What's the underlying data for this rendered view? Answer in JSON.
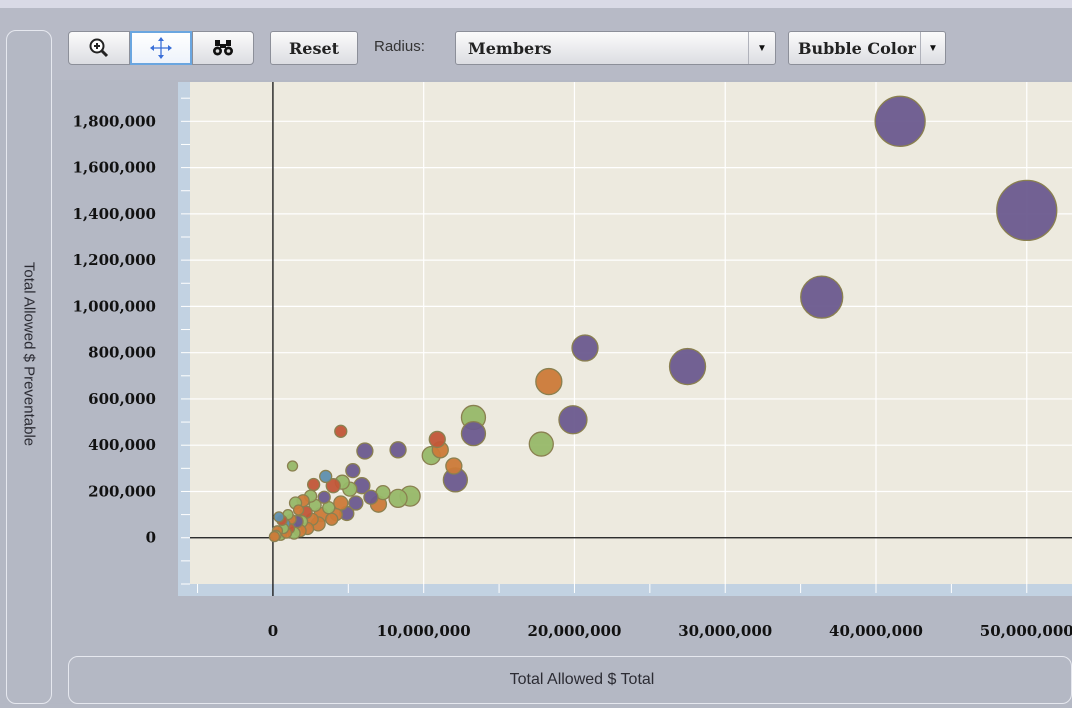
{
  "toolbar": {
    "tools": [
      {
        "name": "zoom-in-icon",
        "glyph": "⊕"
      },
      {
        "name": "pan-icon",
        "glyph": "✛",
        "active": true
      },
      {
        "name": "binoculars-icon",
        "glyph": "⚲"
      }
    ],
    "reset_label": "Reset",
    "radius_label": "Radius:",
    "radius_value": "Members",
    "bubble_color_label": "Bubble Color"
  },
  "chart_data": {
    "type": "scatter",
    "xlabel": "Total Allowed $ Total",
    "ylabel": "Total Allowed $ Preventable",
    "xlim": [
      -5500000,
      53000000
    ],
    "ylim": [
      -200000,
      1970000
    ],
    "x_ticks": [
      0,
      10000000,
      20000000,
      30000000,
      40000000,
      50000000
    ],
    "x_tick_labels": [
      "0",
      "10,000,000",
      "20,000,000",
      "30,000,000",
      "40,000,000",
      "50,000,000"
    ],
    "y_ticks": [
      0,
      200000,
      400000,
      600000,
      800000,
      1000000,
      1200000,
      1400000,
      1600000,
      1800000
    ],
    "y_tick_labels": [
      "0",
      "200,000",
      "400,000",
      "600,000",
      "800,000",
      "1,000,000",
      "1,200,000",
      "1,400,000",
      "1,600,000",
      "1,800,000"
    ],
    "grid": true,
    "colors": {
      "purple": "#6b5a8e",
      "green": "#97b868",
      "orange": "#cc7a38",
      "red": "#c25638",
      "blue": "#5f8fae"
    },
    "points": [
      {
        "x": 41600000,
        "y": 1800000,
        "r": 25,
        "c": "purple"
      },
      {
        "x": 50000000,
        "y": 1415000,
        "r": 30,
        "c": "purple"
      },
      {
        "x": 36400000,
        "y": 1040000,
        "r": 21,
        "c": "purple"
      },
      {
        "x": 27500000,
        "y": 740000,
        "r": 18,
        "c": "purple"
      },
      {
        "x": 20700000,
        "y": 820000,
        "r": 13,
        "c": "purple"
      },
      {
        "x": 19900000,
        "y": 510000,
        "r": 14,
        "c": "purple"
      },
      {
        "x": 18300000,
        "y": 675000,
        "r": 13,
        "c": "orange"
      },
      {
        "x": 17800000,
        "y": 405000,
        "r": 12,
        "c": "green"
      },
      {
        "x": 13300000,
        "y": 520000,
        "r": 12,
        "c": "green"
      },
      {
        "x": 13300000,
        "y": 450000,
        "r": 12,
        "c": "purple"
      },
      {
        "x": 12100000,
        "y": 250000,
        "r": 12,
        "c": "purple"
      },
      {
        "x": 12000000,
        "y": 310000,
        "r": 8,
        "c": "orange"
      },
      {
        "x": 11100000,
        "y": 380000,
        "r": 8,
        "c": "orange"
      },
      {
        "x": 10900000,
        "y": 425000,
        "r": 8,
        "c": "red"
      },
      {
        "x": 10500000,
        "y": 355000,
        "r": 9,
        "c": "green"
      },
      {
        "x": 9100000,
        "y": 180000,
        "r": 10,
        "c": "green"
      },
      {
        "x": 8300000,
        "y": 170000,
        "r": 9,
        "c": "green"
      },
      {
        "x": 8300000,
        "y": 380000,
        "r": 8,
        "c": "purple"
      },
      {
        "x": 7300000,
        "y": 195000,
        "r": 7,
        "c": "green"
      },
      {
        "x": 7000000,
        "y": 145000,
        "r": 8,
        "c": "orange"
      },
      {
        "x": 6500000,
        "y": 175000,
        "r": 7,
        "c": "purple"
      },
      {
        "x": 6100000,
        "y": 375000,
        "r": 8,
        "c": "purple"
      },
      {
        "x": 5900000,
        "y": 225000,
        "r": 8,
        "c": "purple"
      },
      {
        "x": 5500000,
        "y": 150000,
        "r": 7,
        "c": "purple"
      },
      {
        "x": 5300000,
        "y": 290000,
        "r": 7,
        "c": "purple"
      },
      {
        "x": 5100000,
        "y": 210000,
        "r": 7,
        "c": "green"
      },
      {
        "x": 4900000,
        "y": 105000,
        "r": 7,
        "c": "purple"
      },
      {
        "x": 4600000,
        "y": 240000,
        "r": 7,
        "c": "green"
      },
      {
        "x": 4500000,
        "y": 150000,
        "r": 7,
        "c": "orange"
      },
      {
        "x": 4500000,
        "y": 460000,
        "r": 6,
        "c": "red"
      },
      {
        "x": 4200000,
        "y": 100000,
        "r": 6,
        "c": "orange"
      },
      {
        "x": 4000000,
        "y": 225000,
        "r": 7,
        "c": "red"
      },
      {
        "x": 3900000,
        "y": 80000,
        "r": 6,
        "c": "orange"
      },
      {
        "x": 3700000,
        "y": 130000,
        "r": 6,
        "c": "green"
      },
      {
        "x": 3500000,
        "y": 265000,
        "r": 6,
        "c": "blue"
      },
      {
        "x": 3400000,
        "y": 175000,
        "r": 6,
        "c": "purple"
      },
      {
        "x": 3200000,
        "y": 100000,
        "r": 7,
        "c": "orange"
      },
      {
        "x": 3000000,
        "y": 60000,
        "r": 7,
        "c": "orange"
      },
      {
        "x": 2800000,
        "y": 140000,
        "r": 6,
        "c": "green"
      },
      {
        "x": 2700000,
        "y": 230000,
        "r": 6,
        "c": "red"
      },
      {
        "x": 2600000,
        "y": 80000,
        "r": 6,
        "c": "orange"
      },
      {
        "x": 2500000,
        "y": 180000,
        "r": 6,
        "c": "green"
      },
      {
        "x": 2300000,
        "y": 40000,
        "r": 6,
        "c": "orange"
      },
      {
        "x": 2200000,
        "y": 110000,
        "r": 6,
        "c": "red"
      },
      {
        "x": 2000000,
        "y": 160000,
        "r": 6,
        "c": "orange"
      },
      {
        "x": 1900000,
        "y": 70000,
        "r": 6,
        "c": "green"
      },
      {
        "x": 1800000,
        "y": 30000,
        "r": 6,
        "c": "orange"
      },
      {
        "x": 1700000,
        "y": 120000,
        "r": 5,
        "c": "orange"
      },
      {
        "x": 1600000,
        "y": 70000,
        "r": 6,
        "c": "purple"
      },
      {
        "x": 1500000,
        "y": 150000,
        "r": 6,
        "c": "green"
      },
      {
        "x": 1400000,
        "y": 20000,
        "r": 6,
        "c": "green"
      },
      {
        "x": 1300000,
        "y": 310000,
        "r": 5,
        "c": "green"
      },
      {
        "x": 1200000,
        "y": 80000,
        "r": 5,
        "c": "orange"
      },
      {
        "x": 1100000,
        "y": 40000,
        "r": 5,
        "c": "red"
      },
      {
        "x": 1000000,
        "y": 100000,
        "r": 5,
        "c": "green"
      },
      {
        "x": 900000,
        "y": 20000,
        "r": 5,
        "c": "orange"
      },
      {
        "x": 800000,
        "y": 60000,
        "r": 5,
        "c": "blue"
      },
      {
        "x": 700000,
        "y": 40000,
        "r": 5,
        "c": "green"
      },
      {
        "x": 600000,
        "y": 75000,
        "r": 5,
        "c": "red"
      },
      {
        "x": 500000,
        "y": 15000,
        "r": 6,
        "c": "green"
      },
      {
        "x": 400000,
        "y": 90000,
        "r": 5,
        "c": "blue"
      },
      {
        "x": 300000,
        "y": 30000,
        "r": 5,
        "c": "orange"
      },
      {
        "x": 200000,
        "y": 10000,
        "r": 5,
        "c": "green"
      },
      {
        "x": 100000,
        "y": 5000,
        "r": 5,
        "c": "orange"
      }
    ]
  }
}
